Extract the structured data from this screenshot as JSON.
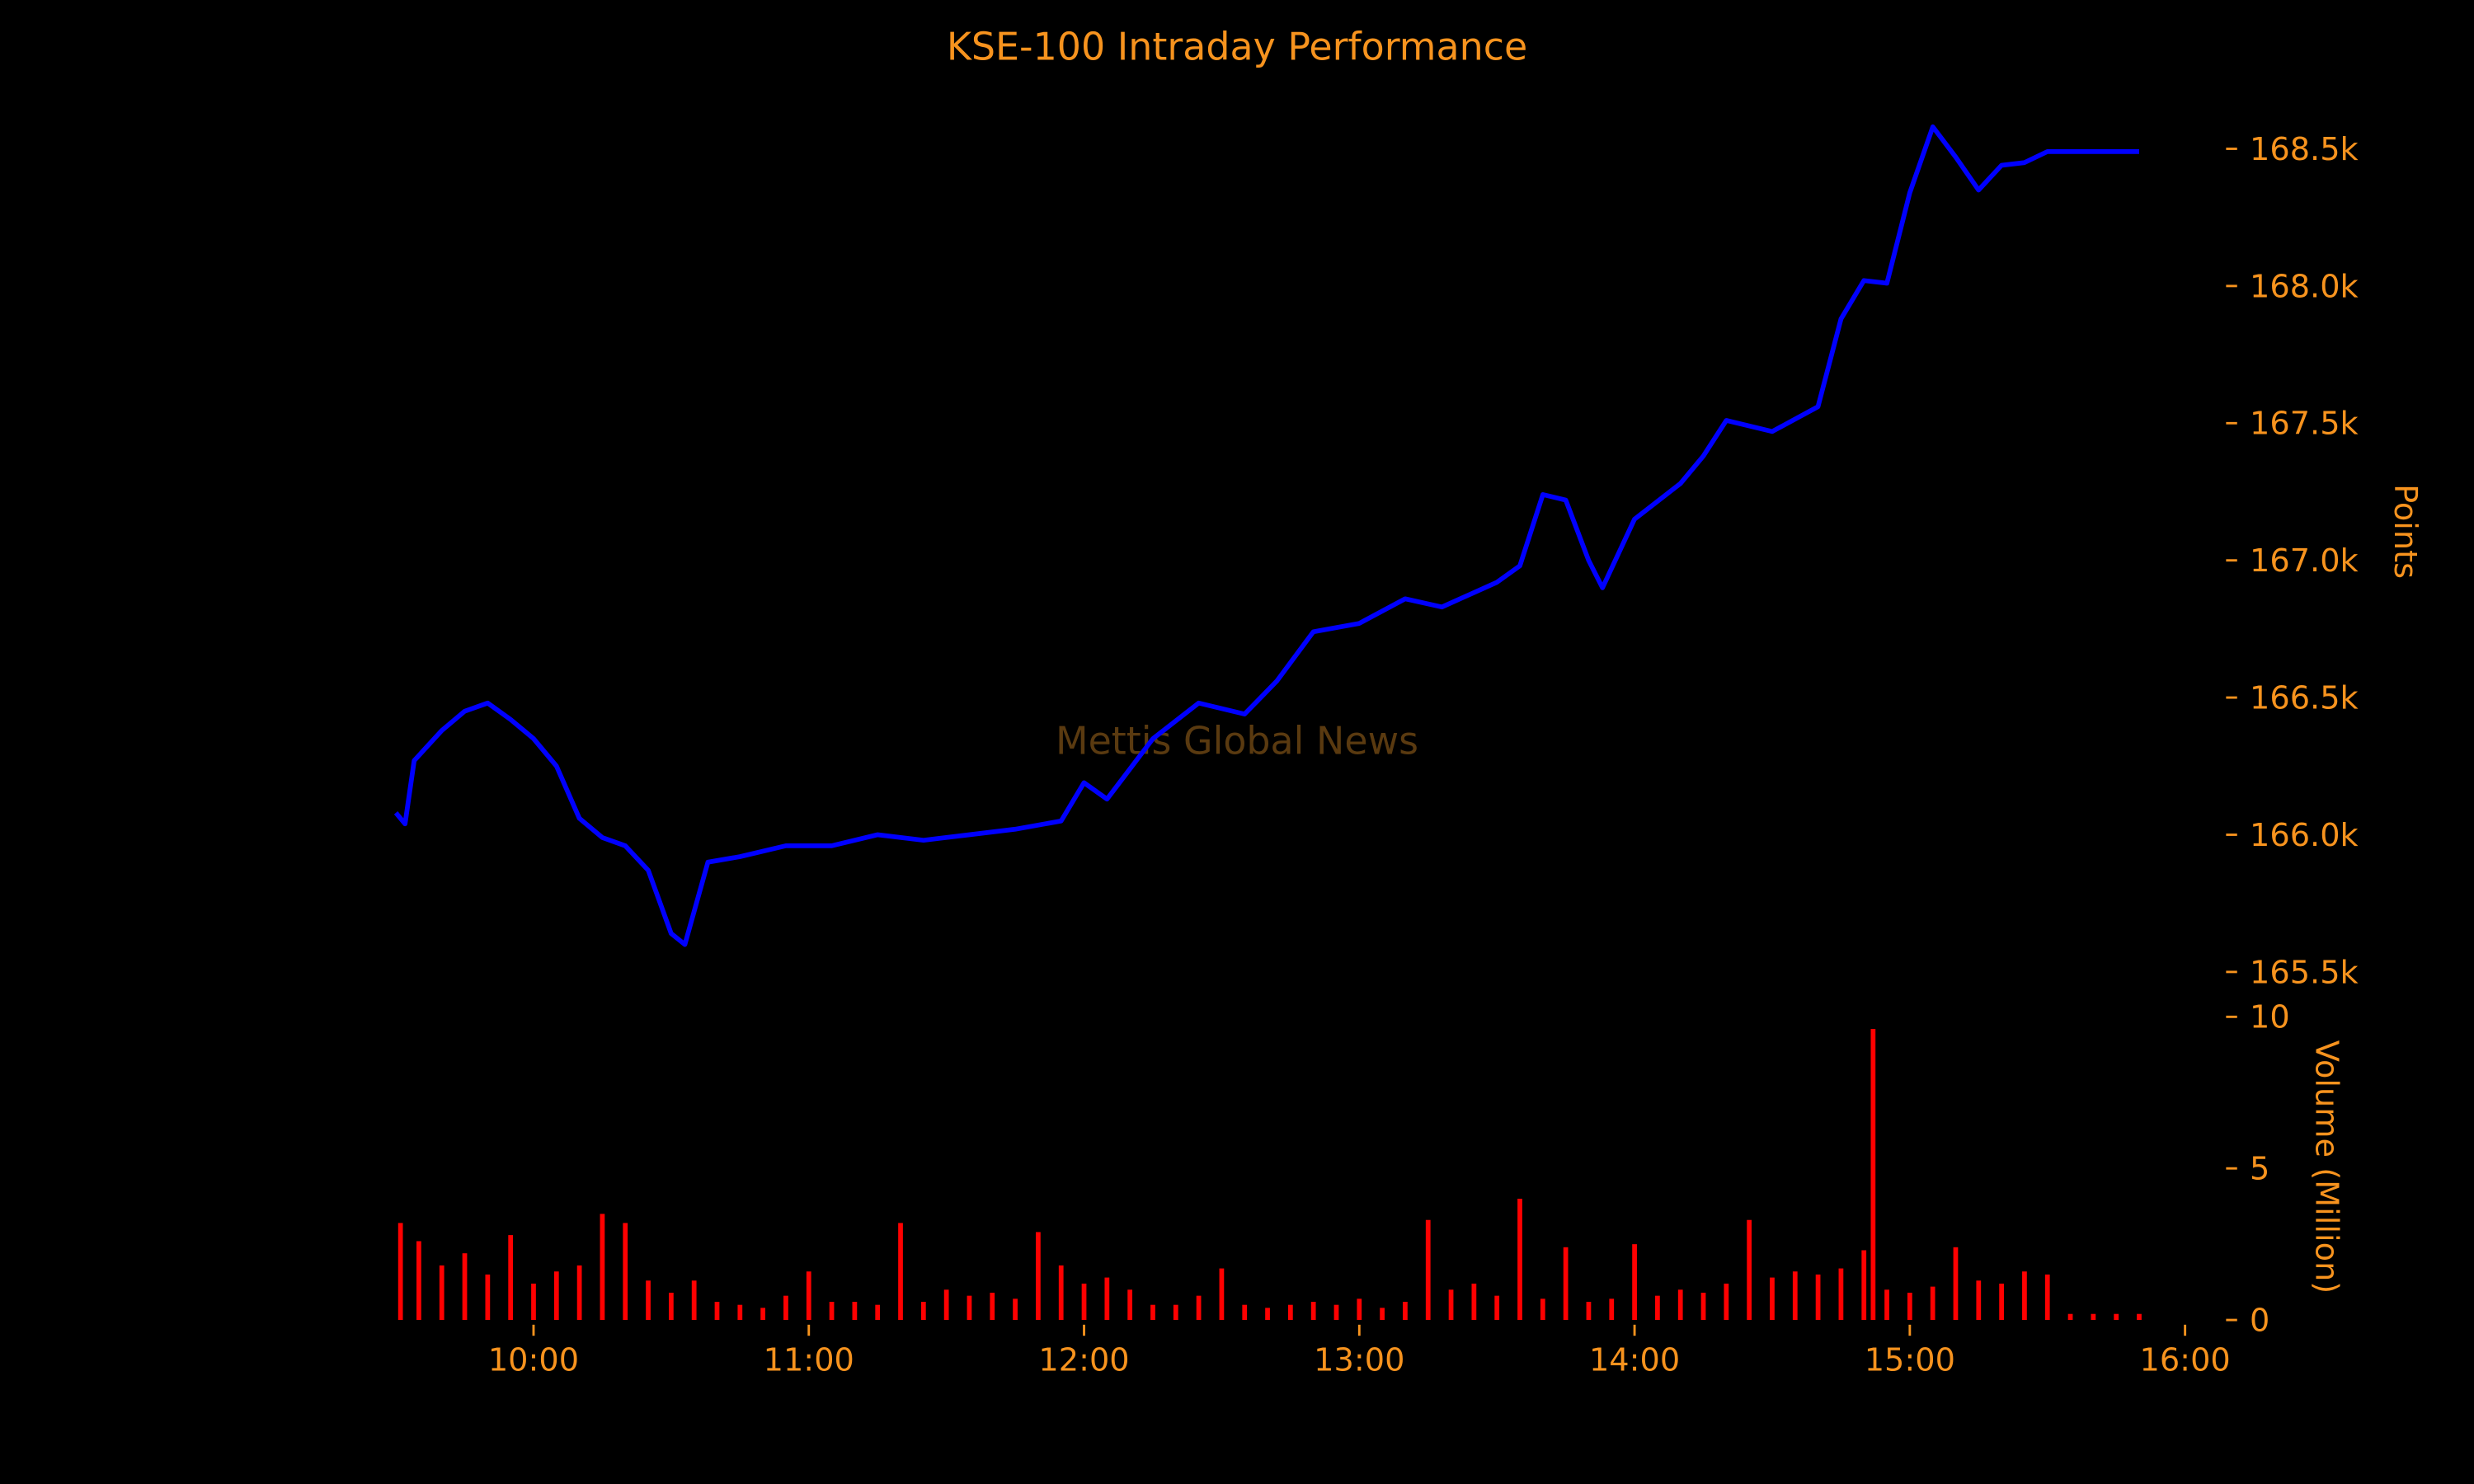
{
  "chart_data": {
    "type": "line",
    "title": "KSE-100 Intraday Performance",
    "watermark": "Mettis Global News",
    "ylabel": "Points",
    "y2label": "Volume (Million)",
    "xlim": [
      "09:28",
      "16:00"
    ],
    "xticks": [
      "10:00",
      "11:00",
      "12:00",
      "13:00",
      "14:00",
      "15:00",
      "16:00"
    ],
    "ylim": [
      165450,
      168640
    ],
    "yticks": [
      {
        "value": 165500,
        "label": "165.5k"
      },
      {
        "value": 166000,
        "label": "166.0k"
      },
      {
        "value": 166500,
        "label": "166.5k"
      },
      {
        "value": 167000,
        "label": "167.0k"
      },
      {
        "value": 167500,
        "label": "167.5k"
      },
      {
        "value": 168000,
        "label": "168.0k"
      },
      {
        "value": 168500,
        "label": "168.5k"
      }
    ],
    "y2lim": [
      0,
      10.3
    ],
    "y2ticks": [
      0,
      5,
      10
    ],
    "price": {
      "color": "#0000ff",
      "x": [
        "09:30",
        "09:32",
        "09:34",
        "09:40",
        "09:45",
        "09:50",
        "09:55",
        "10:00",
        "10:05",
        "10:10",
        "10:15",
        "10:20",
        "10:25",
        "10:30",
        "10:33",
        "10:38",
        "10:45",
        "10:55",
        "11:05",
        "11:15",
        "11:25",
        "11:35",
        "11:45",
        "11:55",
        "12:00",
        "12:05",
        "12:15",
        "12:25",
        "12:35",
        "12:42",
        "12:50",
        "13:00",
        "13:10",
        "13:18",
        "13:30",
        "13:35",
        "13:40",
        "13:45",
        "13:50",
        "13:53",
        "14:00",
        "14:10",
        "14:15",
        "14:20",
        "14:30",
        "14:40",
        "14:45",
        "14:50",
        "14:55",
        "15:00",
        "15:05",
        "15:10",
        "15:15",
        "15:20",
        "15:25",
        "15:30",
        "15:50"
      ],
      "values": [
        166080,
        166040,
        166270,
        166380,
        166450,
        166480,
        166420,
        166350,
        166250,
        166060,
        165990,
        165960,
        165870,
        165640,
        165600,
        165900,
        165920,
        165960,
        165960,
        166000,
        165980,
        166000,
        166020,
        166050,
        166190,
        166130,
        166350,
        166480,
        166440,
        166560,
        166740,
        166770,
        166860,
        166830,
        166920,
        166980,
        167240,
        167220,
        167000,
        166900,
        167150,
        167280,
        167380,
        167510,
        167470,
        167560,
        167880,
        168020,
        168010,
        168340,
        168580,
        168470,
        168350,
        168440,
        168450,
        168490,
        168490
      ]
    },
    "volume": {
      "color": "#ff0000",
      "x": [
        "09:31",
        "09:35",
        "09:40",
        "09:45",
        "09:50",
        "09:55",
        "10:00",
        "10:05",
        "10:10",
        "10:15",
        "10:20",
        "10:25",
        "10:30",
        "10:35",
        "10:40",
        "10:45",
        "10:50",
        "10:55",
        "11:00",
        "11:05",
        "11:10",
        "11:15",
        "11:20",
        "11:25",
        "11:30",
        "11:35",
        "11:40",
        "11:45",
        "11:50",
        "11:55",
        "12:00",
        "12:05",
        "12:10",
        "12:15",
        "12:20",
        "12:25",
        "12:30",
        "12:35",
        "12:40",
        "12:45",
        "12:50",
        "12:55",
        "13:00",
        "13:05",
        "13:10",
        "13:15",
        "13:20",
        "13:25",
        "13:30",
        "13:35",
        "13:40",
        "13:45",
        "13:50",
        "13:55",
        "14:00",
        "14:05",
        "14:10",
        "14:15",
        "14:20",
        "14:25",
        "14:30",
        "14:35",
        "14:40",
        "14:45",
        "14:50",
        "14:52",
        "14:55",
        "15:00",
        "15:05",
        "15:10",
        "15:15",
        "15:20",
        "15:25",
        "15:30",
        "15:35",
        "15:40",
        "15:45",
        "15:50"
      ],
      "values": [
        3.2,
        2.6,
        1.8,
        2.2,
        1.5,
        2.8,
        1.2,
        1.6,
        1.8,
        3.5,
        3.2,
        1.3,
        0.9,
        1.3,
        0.6,
        0.5,
        0.4,
        0.8,
        1.6,
        0.6,
        0.6,
        0.5,
        3.2,
        0.6,
        1.0,
        0.8,
        0.9,
        0.7,
        2.9,
        1.8,
        1.2,
        1.4,
        1.0,
        0.5,
        0.5,
        0.8,
        1.7,
        0.5,
        0.4,
        0.5,
        0.6,
        0.5,
        0.7,
        0.4,
        0.6,
        3.3,
        1.0,
        1.2,
        0.8,
        4.0,
        0.7,
        2.4,
        0.6,
        0.7,
        2.5,
        0.8,
        1.0,
        0.9,
        1.2,
        3.3,
        1.4,
        1.6,
        1.5,
        1.7,
        2.3,
        9.6,
        1.0,
        0.9,
        1.1,
        2.4,
        1.3,
        1.2,
        1.6,
        1.5,
        0.2,
        0.2,
        0.2,
        0.2
      ]
    }
  }
}
